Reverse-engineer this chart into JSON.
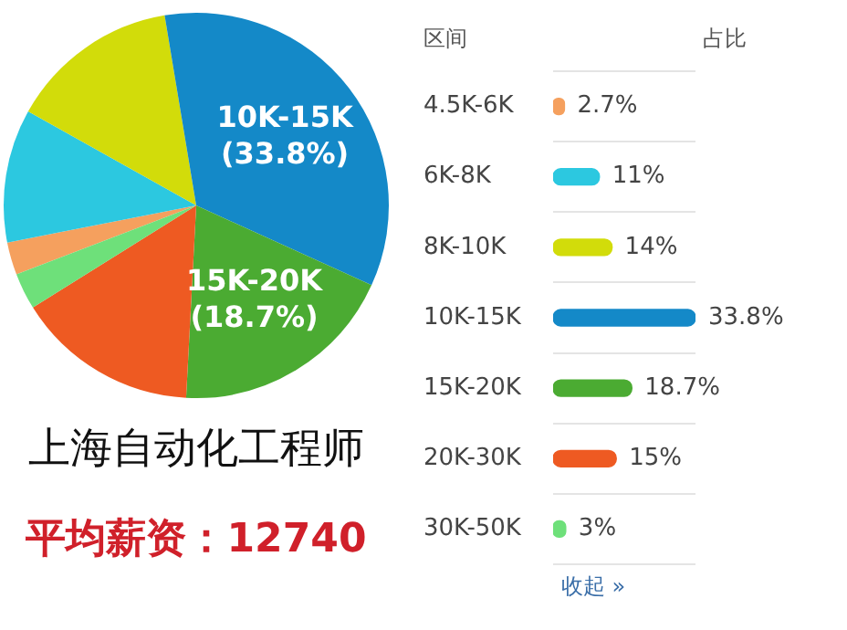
{
  "chart_data": [
    {
      "type": "pie",
      "title": "上海自动化工程师",
      "annotations": [
        "平均薪资：12740"
      ],
      "categories": [
        null,
        null,
        null,
        "10K-15K",
        "15K-20K",
        null,
        null
      ],
      "values": [
        2.7,
        11,
        14,
        33.8,
        18.7,
        15,
        3
      ],
      "colors": [
        "#f5a05e",
        "#2cc8e0",
        "#d2dc0a",
        "#1489c8",
        "#4bab32",
        "#ee5a22",
        "#6ee07a"
      ],
      "value_labels": [
        null,
        null,
        null,
        "(33.8%)",
        "(18.7%)",
        null,
        null
      ],
      "legend": false
    },
    {
      "type": "bar",
      "orientation": "horizontal",
      "ylabel": "区间",
      "xlabel": "占比",
      "annotations": [
        "收起 »"
      ],
      "categories": [
        "4.5K-6K",
        "6K-8K",
        "8K-10K",
        "10K-15K",
        "15K-20K",
        "20K-30K",
        "30K-50K"
      ],
      "values": [
        2.7,
        11,
        14,
        33.8,
        18.7,
        15,
        3
      ],
      "colors": [
        "#f5a05e",
        "#2cc8e0",
        "#d2dc0a",
        "#1489c8",
        "#4bab32",
        "#ee5a22",
        "#6ee07a"
      ],
      "value_labels": [
        "2.7%",
        "11%",
        "14%",
        "33.8%",
        "18.7%",
        "15%",
        "3%"
      ],
      "grid": "y",
      "legend": false
    }
  ]
}
